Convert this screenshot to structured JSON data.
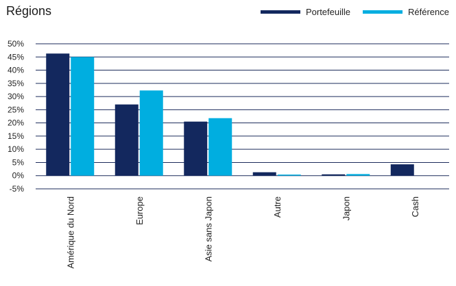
{
  "title": "Régions",
  "chart_data": {
    "type": "bar",
    "title": "Régions",
    "categories": [
      "Amérique du Nord",
      "Europe",
      "Asie sans Japon",
      "Autre",
      "Japon",
      "Cash"
    ],
    "series": [
      {
        "name": "Portefeuille",
        "color": "#13285e",
        "values": [
          46.3,
          27.0,
          20.5,
          1.3,
          0.5,
          4.3
        ]
      },
      {
        "name": "Référence",
        "color": "#00aee0",
        "values": [
          45.0,
          32.3,
          21.8,
          0.4,
          0.6,
          0.0
        ]
      }
    ],
    "ylim": [
      -5,
      50
    ],
    "yticks": [
      "-5%",
      "0%",
      "5%",
      "10%",
      "15%",
      "20%",
      "25%",
      "30%",
      "35%",
      "40%",
      "45%",
      "50%"
    ],
    "xlabel": "",
    "ylabel": "",
    "grid": true,
    "legend_position": "top-right"
  }
}
